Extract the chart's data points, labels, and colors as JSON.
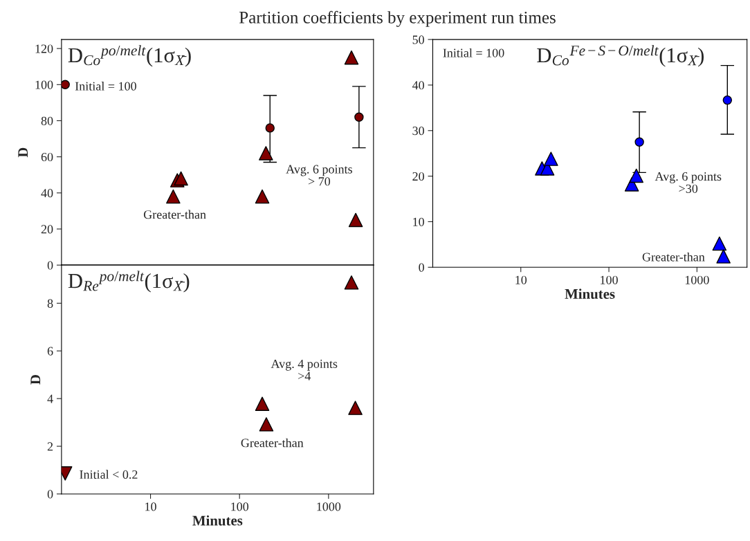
{
  "chart_data": [
    {
      "type": "scatter",
      "title": "Partition coefficients by experiment run times",
      "subtitle": "D$_{Co}$$^{po/melt}$(1σ$_{X̄}$)",
      "ylabel": "D",
      "log": "x",
      "tick_labels": "y",
      "xlim": [
        1,
        3200
      ],
      "xticks": [
        10,
        100,
        1000
      ],
      "ylim": [
        0,
        125
      ],
      "yticks": [
        0,
        20,
        40,
        60,
        80,
        100,
        120
      ],
      "series": [
        {
          "marker": "circle",
          "color": "#800000",
          "x": [
            1.1,
            220,
            2200
          ],
          "values": [
            100,
            76,
            82
          ],
          "errors": [
            null,
            [
              57,
              94
            ],
            [
              65,
              99
            ]
          ]
        },
        {
          "marker": "triangle",
          "color": "#800000",
          "x": [
            18,
            20,
            22,
            198,
            180,
            1810,
            2020
          ],
          "values": [
            38,
            47,
            48,
            62,
            38,
            115,
            25
          ]
        }
      ],
      "annotations": [
        "Initial = 100",
        "Greater-than",
        "Avg. 6 points\n> 70"
      ]
    },
    {
      "type": "scatter",
      "subtitle": "D$_{Co}$$^{Fe−S−O/melt}$(1σ$_{X̄}$)",
      "xlabel": "Minutes",
      "log": "x",
      "xlim": [
        1,
        3700
      ],
      "xticks": [
        10,
        100,
        1000
      ],
      "ylim": [
        0,
        50
      ],
      "yticks": [
        0,
        10,
        20,
        30,
        40,
        50
      ],
      "series": [
        {
          "marker": "circle",
          "color": "#0000ff",
          "x": [
            222,
            2215
          ],
          "values": [
            27.5,
            36.7
          ],
          "errors": [
            [
              20.8,
              34.1
            ],
            [
              29.2,
              44.3
            ]
          ]
        },
        {
          "marker": "triangle",
          "color": "#0000ff",
          "x": [
            17.4,
            20,
            22,
            182,
            205,
            1800,
            2000
          ],
          "values": [
            21.7,
            21.7,
            23.8,
            18.2,
            20.1,
            5.2,
            2.4
          ]
        }
      ],
      "annotations": [
        "Initial = 100",
        "Greater-than",
        "Avg. 6 points\n>30"
      ]
    },
    {
      "type": "scatter",
      "subtitle": "D$_{Re}$$^{po/melt}$(1σ$_{X̄}$)",
      "xlabel": "Minutes",
      "ylabel": "D",
      "log": "x",
      "xlim": [
        1,
        3200
      ],
      "xticks": [
        10,
        100,
        1000
      ],
      "ylim": [
        0,
        9.6
      ],
      "yticks": [
        0,
        2,
        4,
        6,
        8
      ],
      "series": [
        {
          "marker": "triangle-down",
          "color": "#800000",
          "x": [
            1.1
          ],
          "values": [
            0.86
          ]
        },
        {
          "marker": "triangle",
          "color": "#800000",
          "x": [
            180,
            200,
            1810,
            2000
          ],
          "values": [
            3.78,
            2.92,
            8.87,
            3.61
          ]
        }
      ],
      "annotations": [
        "Initial < 0.2",
        "Greater-than",
        "Avg. 4 points\n>4"
      ]
    }
  ]
}
